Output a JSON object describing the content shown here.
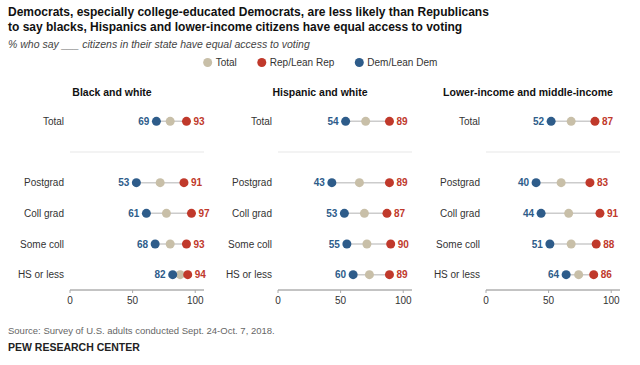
{
  "title": "Democrats, especially college-educated Democrats, are less likely than Republicans\nto say blacks, Hispanics and lower-income citizens have equal access to voting",
  "subtitle": "% who say ___ citizens in their state have equal access to voting",
  "annotations": [
    "Source: Survey of U.S. adults conducted Sept. 24-Oct. 7, 2018.",
    "PEW RESEARCH CENTER"
  ],
  "chart_data": [
    {
      "type": "dot",
      "title": "Black and white",
      "categories": [
        "Total",
        "Postgrad",
        "Coll grad",
        "Some coll",
        "HS or less"
      ],
      "series": [
        {
          "name": "Total",
          "color": "#c8bfa8",
          "marker": "circle",
          "data_labels": false,
          "values": [
            80,
            72,
            77,
            80,
            88
          ]
        },
        {
          "name": "Rep/Lean Rep",
          "color": "#c0392b",
          "marker": "circle",
          "data_labels": true,
          "values": [
            93,
            91,
            97,
            93,
            94
          ]
        },
        {
          "name": "Dem/Lean Dem",
          "color": "#2e5c8a",
          "marker": "circle",
          "data_labels": true,
          "values": [
            69,
            53,
            61,
            68,
            82
          ]
        }
      ],
      "xlim": [
        0,
        107
      ],
      "xticks": [
        0,
        50,
        100
      ],
      "grid": false,
      "legend": "top"
    },
    {
      "type": "dot",
      "title": "Hispanic and white",
      "categories": [
        "Total",
        "Postgrad",
        "Coll grad",
        "Some coll",
        "HS or less"
      ],
      "series": [
        {
          "name": "Total",
          "color": "#c8bfa8",
          "marker": "circle",
          "data_labels": false,
          "values": [
            70,
            65,
            69,
            71,
            73
          ]
        },
        {
          "name": "Rep/Lean Rep",
          "color": "#c0392b",
          "marker": "circle",
          "data_labels": true,
          "values": [
            89,
            89,
            87,
            90,
            89
          ]
        },
        {
          "name": "Dem/Lean Dem",
          "color": "#2e5c8a",
          "marker": "circle",
          "data_labels": true,
          "values": [
            54,
            43,
            53,
            55,
            60
          ]
        }
      ],
      "xlim": [
        0,
        107
      ],
      "xticks": [
        0,
        50,
        100
      ],
      "grid": false
    },
    {
      "type": "dot",
      "title": "Lower-income and middle-income",
      "categories": [
        "Total",
        "Postgrad",
        "Coll grad",
        "Some coll",
        "HS or less"
      ],
      "series": [
        {
          "name": "Total",
          "color": "#c8bfa8",
          "marker": "circle",
          "data_labels": false,
          "values": [
            68,
            60,
            66,
            68,
            74
          ]
        },
        {
          "name": "Rep/Lean Rep",
          "color": "#c0392b",
          "marker": "circle",
          "data_labels": true,
          "values": [
            87,
            83,
            91,
            88,
            86
          ]
        },
        {
          "name": "Dem/Lean Dem",
          "color": "#2e5c8a",
          "marker": "circle",
          "data_labels": true,
          "values": [
            52,
            40,
            44,
            51,
            64
          ]
        }
      ],
      "xlim": [
        0,
        107
      ],
      "xticks": [
        0,
        50,
        100
      ],
      "grid": false
    }
  ]
}
